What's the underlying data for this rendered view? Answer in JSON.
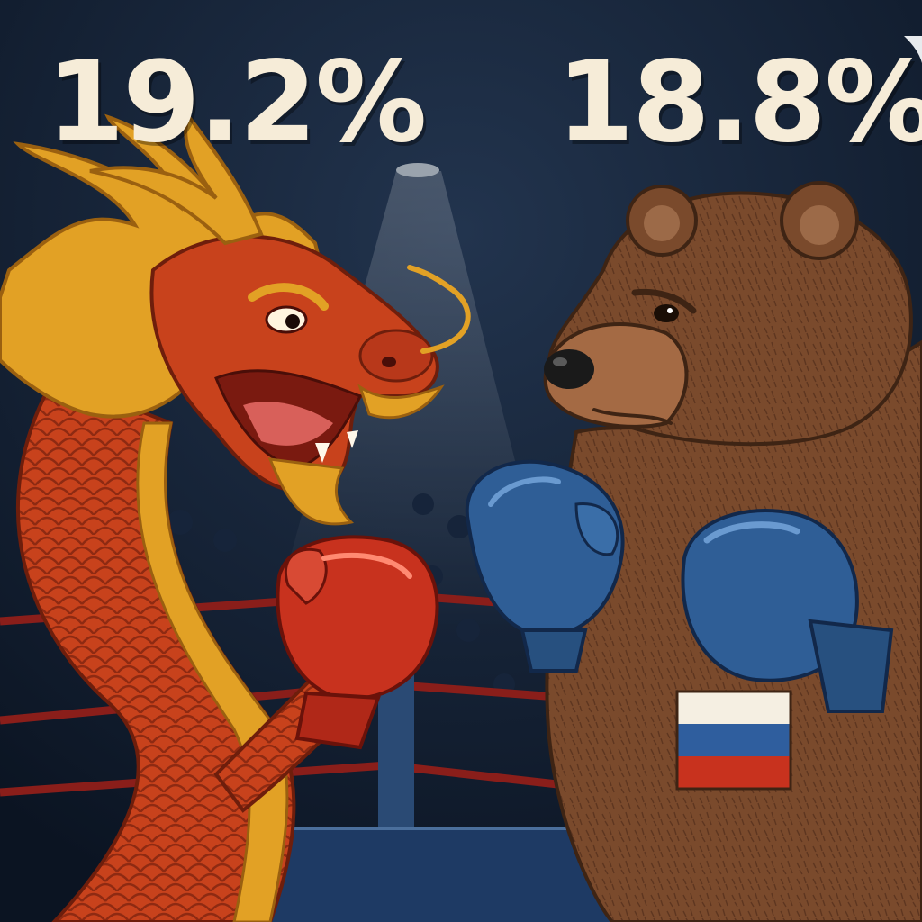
{
  "scoreboard": {
    "left_percent": "19.2%",
    "right_percent": "18.8%"
  },
  "fighters": {
    "left": {
      "character": "dragon",
      "glove_color": "#c8321e"
    },
    "right": {
      "character": "bear",
      "glove_color": "#2f5e96",
      "patch": "russian-flag-icon"
    }
  },
  "colors": {
    "background": "#0f1a2a",
    "text": "#f6ecd8",
    "dragon_body": "#c8421c",
    "dragon_mane": "#e2a125",
    "bear_fur": "#7a4a2c",
    "ring_rope": "#8a1e1a"
  }
}
